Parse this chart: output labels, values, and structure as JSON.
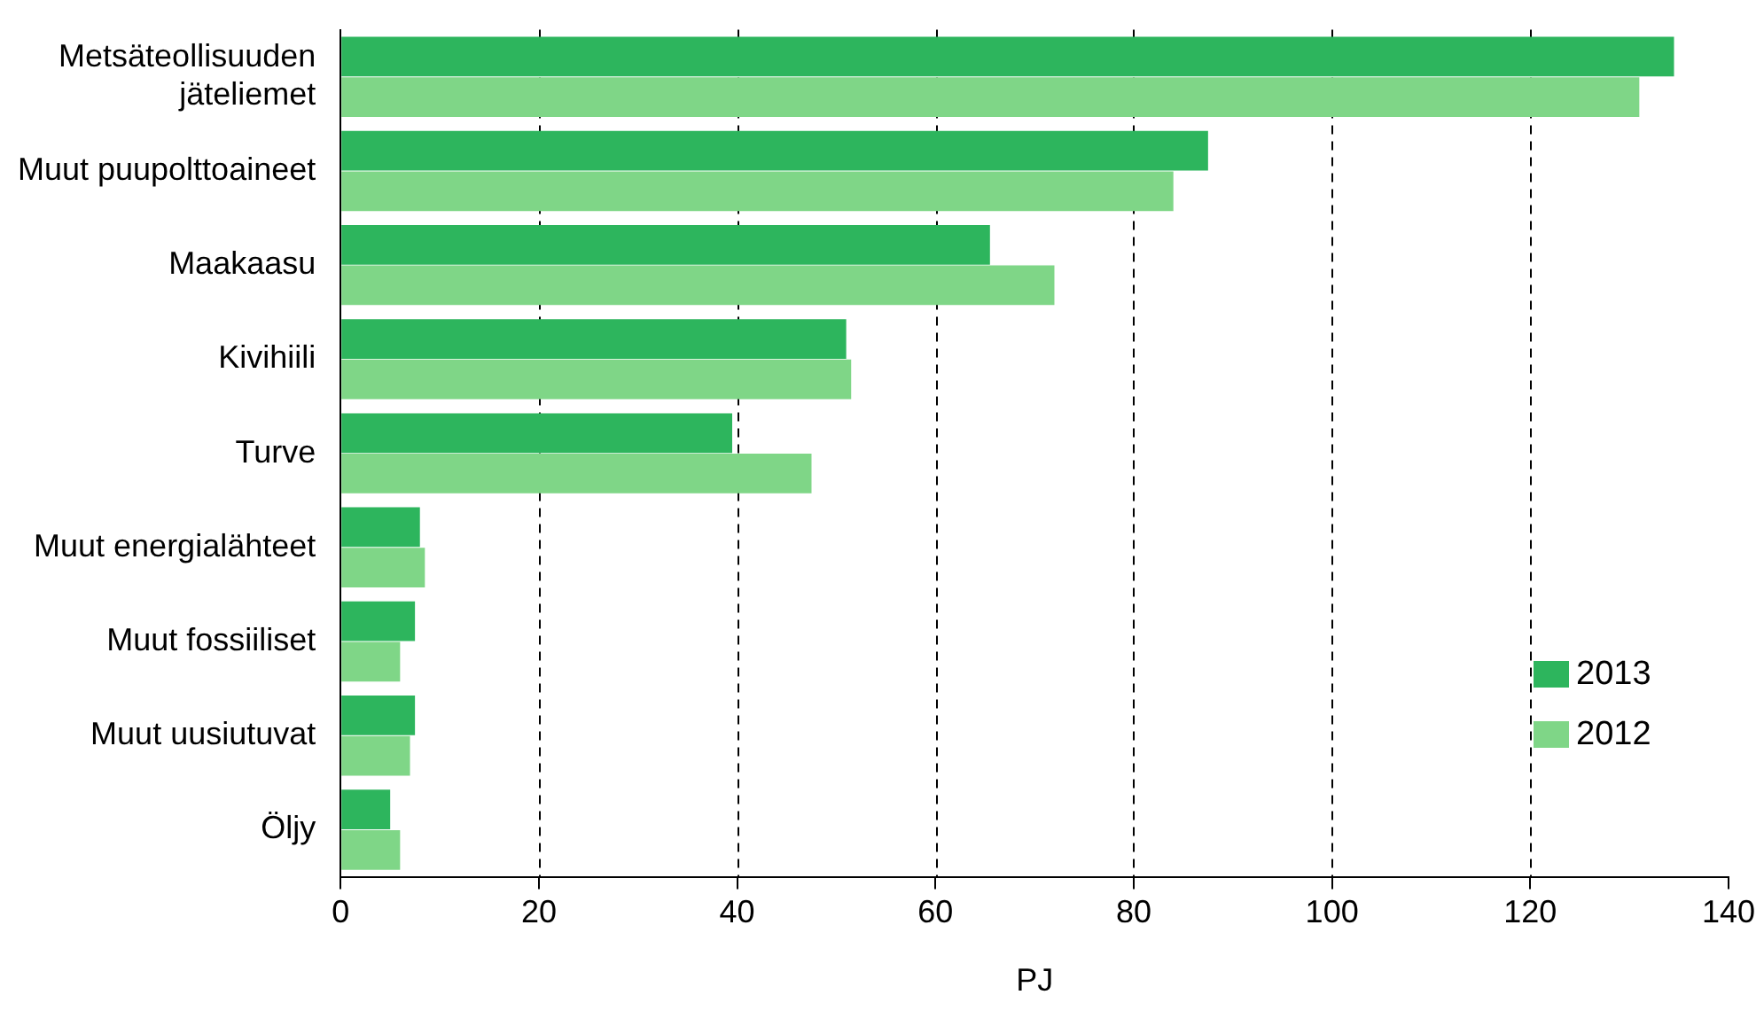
{
  "chart_data": {
    "type": "bar",
    "orientation": "horizontal",
    "xlabel": "PJ",
    "categories": [
      "Metsäteollisuuden jäteliemet",
      "Muut puupolttoaineet",
      "Maakaasu",
      "Kivihiili",
      "Turve",
      "Muut energialähteet",
      "Muut fossiiliset",
      "Muut uusiutuvat",
      "Öljy"
    ],
    "series": [
      {
        "name": "2013",
        "color": "#2db55d",
        "values": [
          134.5,
          87.5,
          65.5,
          51,
          39.5,
          8,
          7.5,
          7.5,
          5
        ]
      },
      {
        "name": "2012",
        "color": "#7fd687",
        "values": [
          131,
          84,
          72,
          51.5,
          47.5,
          8.5,
          6,
          7,
          6
        ]
      }
    ],
    "xlim": [
      0,
      140
    ],
    "xticks": [
      0,
      20,
      40,
      60,
      80,
      100,
      120,
      140
    ],
    "grid": "x",
    "legend": "bottom right"
  }
}
